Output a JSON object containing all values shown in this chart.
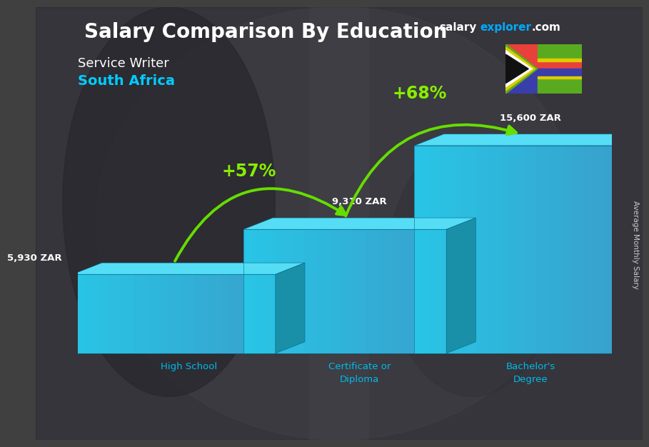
{
  "title_main": "Salary Comparison By Education",
  "subtitle1": "Service Writer",
  "subtitle2": "South Africa",
  "ylabel": "Average Monthly Salary",
  "categories": [
    "High School",
    "Certificate or\nDiploma",
    "Bachelor's\nDegree"
  ],
  "values": [
    5930,
    9310,
    15600
  ],
  "value_labels": [
    "5,930 ZAR",
    "9,310 ZAR",
    "15,600 ZAR"
  ],
  "bar_front_color": "#29c5e6",
  "bar_top_color": "#55ddf5",
  "bar_side_color": "#1a8fa8",
  "pct_labels": [
    "+57%",
    "+68%"
  ],
  "pct_color": "#88ee00",
  "arrow_color": "#66dd00",
  "bg_color": "#3a3a3a",
  "text_color_white": "#ffffff",
  "text_color_cyan": "#00ccff",
  "watermark_salary": "salary",
  "watermark_explorer": "explorer",
  "watermark_com": ".com",
  "flag_red": "#e8403a",
  "flag_blue": "#3a3eaa",
  "flag_green": "#5aaa20",
  "flag_yellow": "#ddcc00",
  "flag_white": "#ffffff",
  "flag_black": "#111111"
}
